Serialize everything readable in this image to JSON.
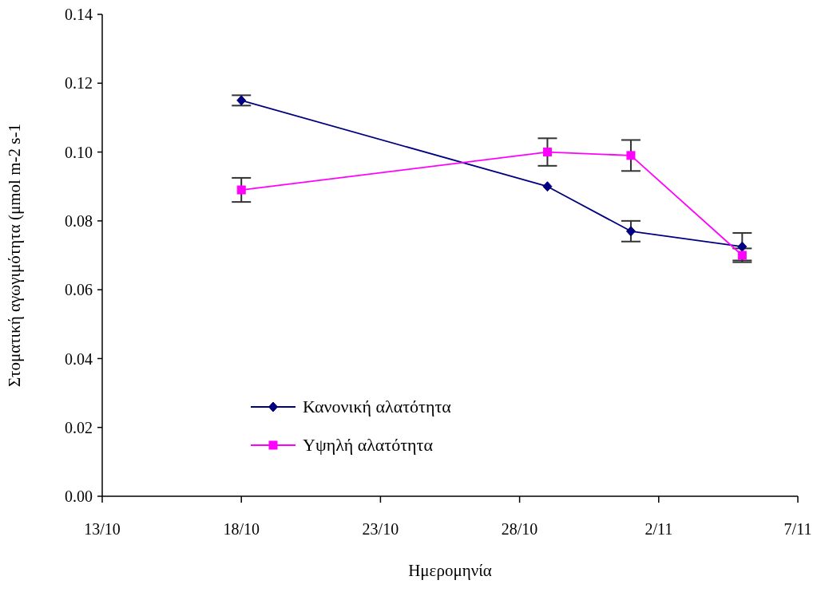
{
  "chart_data": {
    "type": "line",
    "xlabel": "Ημερομηνία",
    "ylabel": "Στοματική αγωγιμότητα (μmol m-2 s-1",
    "x": [
      "--10-18",
      "--10-29",
      "--11-01",
      "--11-05"
    ],
    "series": [
      {
        "name": "Κανονική αλατότητα",
        "color": "#000080",
        "marker": "diamond",
        "values": [
          0.115,
          0.09,
          0.077,
          0.0725
        ],
        "errors": [
          0.0015,
          null,
          0.003,
          0.004
        ]
      },
      {
        "name": "Υψηλή αλατότητα",
        "color": "#ff00ff",
        "marker": "square",
        "values": [
          0.089,
          0.1,
          0.099,
          0.07
        ],
        "errors": [
          0.0035,
          0.004,
          0.0045,
          0.002
        ]
      }
    ],
    "xlim": [
      "--10-13",
      "--11-07"
    ],
    "xticks": [
      {
        "value": "--10-13",
        "label": "13/10"
      },
      {
        "value": "--10-18",
        "label": "18/10"
      },
      {
        "value": "--10-23",
        "label": "23/10"
      },
      {
        "value": "--10-28",
        "label": "28/10"
      },
      {
        "value": "--11-02",
        "label": "2/11"
      },
      {
        "value": "--11-07",
        "label": "7/11"
      }
    ],
    "ylim": [
      0,
      0.14
    ],
    "yticks": [
      {
        "value": 0,
        "label": "0.00"
      },
      0.02,
      0.04,
      0.06,
      0.08,
      {
        "value": 0.1,
        "label": "0.10"
      },
      0.12,
      0.14
    ],
    "grid": false,
    "legend": "bottom left"
  }
}
